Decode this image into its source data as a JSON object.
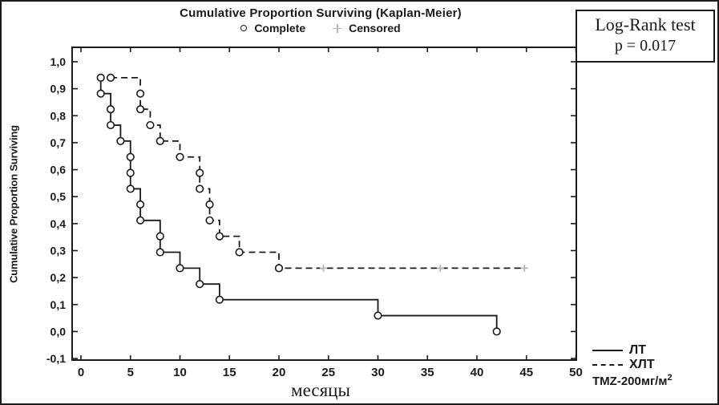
{
  "header": {
    "title": "Cumulative Proportion Surviving (Kaplan-Meier)",
    "complete_label": "Complete",
    "censored_label": "Censored"
  },
  "logrank": {
    "line1": "Log-Rank test",
    "line2": "p = 0.017"
  },
  "axes": {
    "y_title": "Cumulative Proportion Surviving",
    "x_title": "месяцы"
  },
  "series_legend": {
    "lt": "ЛТ",
    "hlt": "ХЛТ",
    "tmz": "TMZ-200мг/м",
    "tmz_sup": "2"
  },
  "colors": {
    "ink": "#1a1a1a",
    "censored": "#b5b5b5",
    "background": "#ffffff"
  },
  "chart_data": {
    "type": "line",
    "subtype": "kaplan-meier-step",
    "title": "Cumulative Proportion Surviving (Kaplan-Meier)",
    "xlabel": "месяцы",
    "ylabel": "Cumulative Proportion Surviving",
    "xlim": [
      -1,
      50
    ],
    "ylim": [
      -0.1,
      1.0
    ],
    "grid": false,
    "legend_position": "bottom-right",
    "marker_legend": [
      {
        "marker": "open-circle",
        "label": "Complete"
      },
      {
        "marker": "plus",
        "label": "Censored"
      }
    ],
    "annotations": [
      "Log-Rank test",
      "p = 0.017"
    ],
    "x_tick_values": [
      0,
      5,
      10,
      15,
      20,
      25,
      30,
      35,
      40,
      45,
      50
    ],
    "x_tick_labels": [
      "0",
      "5",
      "10",
      "15",
      "20",
      "25",
      "30",
      "35",
      "40",
      "45",
      "50"
    ],
    "y_tick_values": [
      1.0,
      0.9,
      0.8,
      0.7,
      0.6,
      0.5,
      0.4,
      0.3,
      0.2,
      0.1,
      0.0,
      -0.1
    ],
    "y_tick_labels": [
      "1,0",
      "0,9",
      "0,8",
      "0,7",
      "0,6",
      "0,5",
      "0,4",
      "0,3",
      "0,2",
      "0,1",
      "0,0",
      "-0,1"
    ],
    "series": [
      {
        "name": "ЛТ",
        "line": "solid",
        "points": [
          [
            2,
            0.941
          ],
          [
            2,
            0.882
          ],
          [
            3,
            0.824
          ],
          [
            3,
            0.765
          ],
          [
            4,
            0.706
          ],
          [
            5,
            0.647
          ],
          [
            5,
            0.588
          ],
          [
            5,
            0.529
          ],
          [
            6,
            0.471
          ],
          [
            6,
            0.412
          ],
          [
            8,
            0.353
          ],
          [
            8,
            0.294
          ],
          [
            10,
            0.235
          ],
          [
            12,
            0.176
          ],
          [
            14,
            0.118
          ],
          [
            30,
            0.059
          ],
          [
            42,
            0.0
          ]
        ],
        "end_x": 42,
        "censored": []
      },
      {
        "name": "ХЛТ TMZ-200мг/м2",
        "line": "dashed",
        "points": [
          [
            3,
            0.941
          ],
          [
            6,
            0.882
          ],
          [
            6,
            0.824
          ],
          [
            7,
            0.765
          ],
          [
            8,
            0.706
          ],
          [
            10,
            0.647
          ],
          [
            12,
            0.588
          ],
          [
            12,
            0.529
          ],
          [
            13,
            0.471
          ],
          [
            13,
            0.412
          ],
          [
            14,
            0.353
          ],
          [
            16,
            0.294
          ],
          [
            20,
            0.235
          ]
        ],
        "end_x": 44.8,
        "censored": [
          [
            24.5,
            0.235
          ],
          [
            36.3,
            0.235
          ],
          [
            44.8,
            0.235
          ]
        ]
      }
    ]
  }
}
